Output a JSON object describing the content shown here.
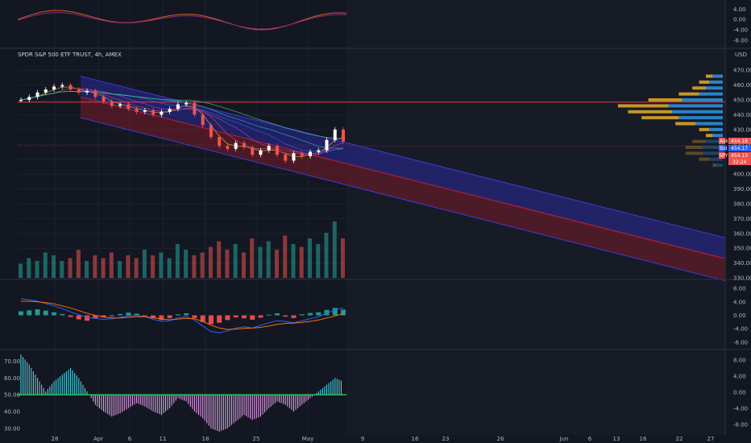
{
  "header": {
    "symbol_title": "SPDR S&P 500 ETF TRUST, 4h, AMEX",
    "currency": "USD"
  },
  "colors": {
    "background": "#131722",
    "grid": "#1e2230",
    "up": "#26a69a",
    "down": "#ef5350",
    "channel_blue": "#2a2a9a",
    "channel_red": "#7a1c2a",
    "resistance_line": "#f23645",
    "vp_up": "#2f8fd8",
    "vp_down": "#d9a42a"
  },
  "price_tags": {
    "ask_label": "Ask",
    "ask_value": "454.18",
    "bid_label": "Bid",
    "bid_value": "454.17",
    "symbol_label": "SPY",
    "symbol_value": "454.13",
    "countdown": "32:24"
  },
  "chart_data": {
    "type": "line",
    "title": "SPDR S&P 500 ETF TRUST, 4h, AMEX",
    "x_ticks": [
      "28",
      "Apr",
      "6",
      "11",
      "18",
      "25",
      "May",
      "9",
      "16",
      "23",
      "26",
      "Jun",
      "6",
      "13",
      "16",
      "22",
      "27"
    ],
    "price_axis": {
      "unit": "USD",
      "ticks": [
        "470.00",
        "460.00",
        "450.00",
        "440.00",
        "430.00",
        "420.00",
        "410.00",
        "400.00",
        "390.00",
        "380.00",
        "370.00",
        "360.00",
        "350.00",
        "340.00",
        "330.00"
      ],
      "ylim": [
        330,
        475
      ]
    },
    "price_series": {
      "name": "SPY",
      "values": [
        450,
        452,
        455,
        457,
        459,
        460,
        457,
        455,
        456,
        452,
        449,
        446,
        447,
        444,
        442,
        443,
        440,
        442,
        444,
        447,
        448,
        440,
        433,
        425,
        419,
        417,
        421,
        418,
        413,
        416,
        419,
        413,
        409,
        414,
        412,
        415,
        416,
        423,
        430,
        422
      ]
    },
    "volume_series": [
      5,
      7,
      6,
      9,
      8,
      6,
      7,
      10,
      6,
      8,
      7,
      9,
      6,
      8,
      7,
      10,
      8,
      9,
      7,
      12,
      10,
      8,
      9,
      11,
      13,
      10,
      12,
      9,
      14,
      11,
      13,
      10,
      15,
      12,
      11,
      14,
      12,
      16,
      20,
      14
    ],
    "resistance_level": 448.5,
    "support_level": 419,
    "channel": {
      "blue_band": {
        "start": [
          0,
          466
        ],
        "end": [
          1,
          357
        ]
      },
      "blue_band_lower": {
        "start": [
          0,
          452
        ],
        "end": [
          1,
          343
        ]
      },
      "red_band_lower": {
        "start": [
          0,
          438
        ],
        "end": [
          1,
          328
        ]
      }
    },
    "volume_profile": {
      "price_levels": [
        466,
        462,
        458,
        454,
        450,
        446,
        442,
        438,
        434,
        430,
        426,
        422,
        418,
        414,
        410,
        406
      ],
      "up_volume": [
        3,
        4,
        5,
        7,
        12,
        16,
        15,
        13,
        8,
        4,
        3,
        5,
        6,
        6,
        4,
        2
      ],
      "down_volume": [
        2,
        3,
        4,
        6,
        10,
        15,
        13,
        11,
        6,
        3,
        2,
        4,
        5,
        5,
        3,
        1
      ]
    },
    "top_indicator": {
      "axis_ticks": [
        "4.00",
        "0.00",
        "-4.00",
        "-8.00"
      ],
      "ylim": [
        -9,
        6
      ]
    },
    "macd": {
      "axis_ticks": [
        "8.00",
        "4.00",
        "0.00",
        "-4.00",
        "-8.00"
      ],
      "ylim": [
        -9,
        9
      ],
      "histogram": [
        1.2,
        1.5,
        1.8,
        1.4,
        0.9,
        0.4,
        -0.5,
        -1.2,
        -1.6,
        -1.0,
        -0.6,
        -0.3,
        0.4,
        0.8,
        0.5,
        -0.2,
        -0.9,
        -1.4,
        -0.8,
        0.3,
        0.6,
        -0.8,
        -2.0,
        -2.6,
        -2.2,
        -1.4,
        -0.6,
        -0.9,
        -1.3,
        -0.7,
        0.2,
        0.6,
        -0.4,
        -0.8,
        0.3,
        0.7,
        0.9,
        1.6,
        2.2,
        1.7
      ],
      "macd_line": [
        5.0,
        4.6,
        4.2,
        3.5,
        2.8,
        2.0,
        1.0,
        0.2,
        -0.6,
        -0.9,
        -1.2,
        -1.0,
        -0.6,
        -0.2,
        0.0,
        -0.4,
        -1.2,
        -1.8,
        -1.6,
        -0.8,
        -0.4,
        -1.4,
        -3.2,
        -4.8,
        -5.2,
        -4.6,
        -3.8,
        -3.4,
        -3.8,
        -3.0,
        -2.2,
        -1.6,
        -1.8,
        -2.2,
        -1.6,
        -1.0,
        -0.4,
        0.6,
        1.6,
        2.2
      ],
      "signal_line": [
        4.2,
        4.2,
        4.0,
        3.8,
        3.4,
        2.8,
        2.2,
        1.4,
        0.6,
        0.0,
        -0.5,
        -0.8,
        -0.8,
        -0.6,
        -0.4,
        -0.4,
        -0.7,
        -1.1,
        -1.3,
        -1.1,
        -0.9,
        -1.0,
        -1.8,
        -2.9,
        -3.8,
        -4.2,
        -4.1,
        -3.9,
        -3.8,
        -3.6,
        -3.2,
        -2.7,
        -2.4,
        -2.3,
        -2.1,
        -1.8,
        -1.4,
        -0.8,
        -0.2,
        0.5
      ]
    },
    "oscillator": {
      "axis_ticks_left": [
        "70.00",
        "60.00",
        "50.00",
        "40.00",
        "30.00"
      ],
      "axis_ticks_right": [
        "8.00",
        "4.00",
        "0.00",
        "-4.00",
        "-8.00"
      ],
      "ylim": [
        27,
        76
      ],
      "midline": 50,
      "values": [
        74,
        68,
        60,
        52,
        58,
        62,
        66,
        60,
        52,
        44,
        40,
        37,
        39,
        42,
        45,
        43,
        40,
        38,
        42,
        48,
        46,
        40,
        36,
        30,
        28,
        30,
        34,
        38,
        35,
        37,
        42,
        46,
        44,
        40,
        44,
        48,
        52,
        56,
        60,
        58
      ]
    },
    "grid": true,
    "legend": "none"
  }
}
